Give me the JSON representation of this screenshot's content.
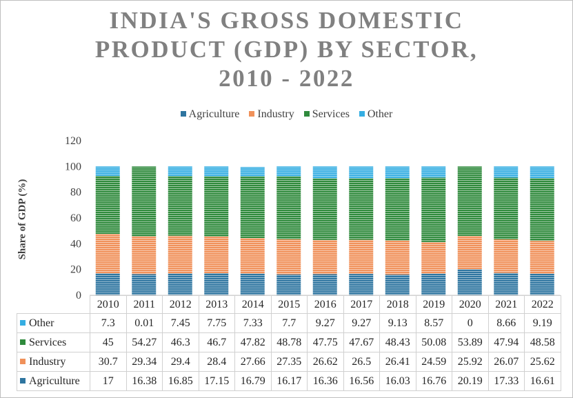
{
  "chart_data": {
    "type": "bar",
    "stacked": true,
    "title_lines": [
      "INDIA'S GROSS DOMESTIC",
      "PRODUCT (GDP) BY SECTOR,",
      "2010 - 2022"
    ],
    "xlabel": "",
    "ylabel": "Share of GDP (%)",
    "ylim": [
      0,
      120
    ],
    "yticks": [
      "0",
      "20",
      "40",
      "60",
      "80",
      "100",
      "120"
    ],
    "grid": false,
    "legend_position": "top-center",
    "categories": [
      "2010",
      "2011",
      "2012",
      "2013",
      "2014",
      "2015",
      "2016",
      "2017",
      "2018",
      "2019",
      "2020",
      "2021",
      "2022"
    ],
    "series": [
      {
        "name": "Agriculture",
        "color": "#2e75a0",
        "values": [
          17,
          16.38,
          16.85,
          17.15,
          16.79,
          16.17,
          16.36,
          16.56,
          16.03,
          16.76,
          20.19,
          17.33,
          16.61
        ],
        "labels": [
          "17",
          "16.38",
          "16.85",
          "17.15",
          "16.79",
          "16.17",
          "16.36",
          "16.56",
          "16.03",
          "16.76",
          "20.19",
          "17.33",
          "16.61"
        ]
      },
      {
        "name": "Industry",
        "color": "#f0915a",
        "values": [
          30.7,
          29.34,
          29.4,
          28.4,
          27.66,
          27.35,
          26.62,
          26.5,
          26.41,
          24.59,
          25.92,
          26.07,
          25.62
        ],
        "labels": [
          "30.7",
          "29.34",
          "29.4",
          "28.4",
          "27.66",
          "27.35",
          "26.62",
          "26.5",
          "26.41",
          "24.59",
          "25.92",
          "26.07",
          "25.62"
        ]
      },
      {
        "name": "Services",
        "color": "#2f8a3c",
        "values": [
          45,
          54.27,
          46.3,
          46.7,
          47.82,
          48.78,
          47.75,
          47.67,
          48.43,
          50.08,
          53.89,
          47.94,
          48.58
        ],
        "labels": [
          "45",
          "54.27",
          "46.3",
          "46.7",
          "47.82",
          "48.78",
          "47.75",
          "47.67",
          "48.43",
          "50.08",
          "53.89",
          "47.94",
          "48.58"
        ]
      },
      {
        "name": "Other",
        "color": "#35aee2",
        "values": [
          7.3,
          0.01,
          7.45,
          7.75,
          7.33,
          7.7,
          9.27,
          9.27,
          9.13,
          8.57,
          0,
          8.66,
          9.19
        ],
        "labels": [
          "7.3",
          "0.01",
          "7.45",
          "7.75",
          "7.33",
          "7.7",
          "9.27",
          "9.27",
          "9.13",
          "8.57",
          "0",
          "8.66",
          "9.19"
        ]
      }
    ],
    "table_row_order": [
      "Other",
      "Services",
      "Industry",
      "Agriculture"
    ]
  }
}
